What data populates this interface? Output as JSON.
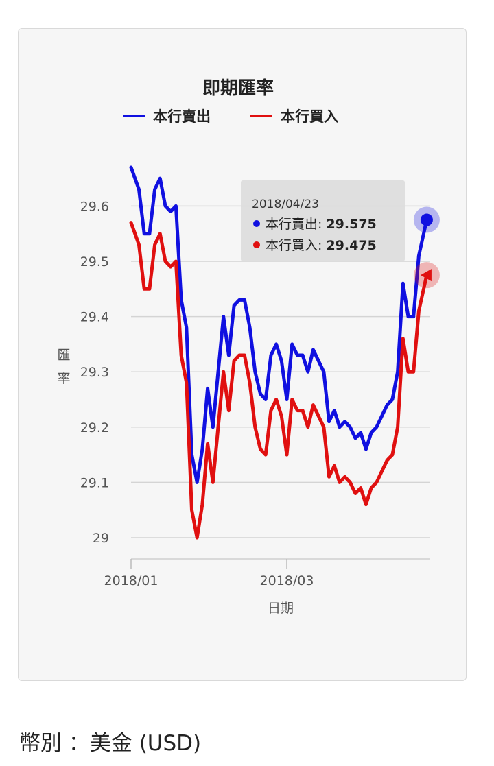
{
  "chart_data": {
    "type": "line",
    "title": "即期匯率",
    "xlabel": "日期",
    "ylabel": "匯率",
    "x_ticks": [
      "2018/01",
      "2018/03"
    ],
    "yticks": [
      29,
      29.1,
      29.2,
      29.3,
      29.4,
      29.5,
      29.6
    ],
    "ylim": [
      28.98,
      29.7
    ],
    "legend": "top",
    "grid": true,
    "x": [
      "2018-01-01",
      "2018-01-04",
      "2018-01-06",
      "2018-01-08",
      "2018-01-10",
      "2018-01-12",
      "2018-01-14",
      "2018-01-16",
      "2018-01-18",
      "2018-01-20",
      "2018-01-22",
      "2018-01-24",
      "2018-01-26",
      "2018-01-28",
      "2018-01-30",
      "2018-02-01",
      "2018-02-03",
      "2018-02-05",
      "2018-02-07",
      "2018-02-09",
      "2018-02-11",
      "2018-02-13",
      "2018-02-15",
      "2018-02-17",
      "2018-02-19",
      "2018-02-21",
      "2018-02-23",
      "2018-02-25",
      "2018-02-27",
      "2018-03-01",
      "2018-03-03",
      "2018-03-05",
      "2018-03-07",
      "2018-03-09",
      "2018-03-11",
      "2018-03-13",
      "2018-03-15",
      "2018-03-17",
      "2018-03-19",
      "2018-03-21",
      "2018-03-23",
      "2018-03-25",
      "2018-03-27",
      "2018-03-29",
      "2018-03-31",
      "2018-04-02",
      "2018-04-04",
      "2018-04-06",
      "2018-04-08",
      "2018-04-10",
      "2018-04-12",
      "2018-04-14",
      "2018-04-16",
      "2018-04-18",
      "2018-04-20",
      "2018-04-23"
    ],
    "series": [
      {
        "name": "本行賣出",
        "color": "#1010e0",
        "values": [
          29.67,
          29.63,
          29.55,
          29.55,
          29.63,
          29.65,
          29.6,
          29.59,
          29.6,
          29.43,
          29.38,
          29.15,
          29.1,
          29.16,
          29.27,
          29.2,
          29.3,
          29.4,
          29.33,
          29.42,
          29.43,
          29.43,
          29.38,
          29.3,
          29.26,
          29.25,
          29.33,
          29.35,
          29.32,
          29.25,
          29.35,
          29.33,
          29.33,
          29.3,
          29.34,
          29.32,
          29.3,
          29.21,
          29.23,
          29.2,
          29.21,
          29.2,
          29.18,
          29.19,
          29.16,
          29.19,
          29.2,
          29.22,
          29.24,
          29.25,
          29.3,
          29.46,
          29.4,
          29.4,
          29.51,
          29.575
        ]
      },
      {
        "name": "本行買入",
        "color": "#e01010",
        "values": [
          29.57,
          29.53,
          29.45,
          29.45,
          29.53,
          29.55,
          29.5,
          29.49,
          29.5,
          29.33,
          29.28,
          29.05,
          29.0,
          29.06,
          29.17,
          29.1,
          29.2,
          29.3,
          29.23,
          29.32,
          29.33,
          29.33,
          29.28,
          29.2,
          29.16,
          29.15,
          29.23,
          29.25,
          29.22,
          29.15,
          29.25,
          29.23,
          29.23,
          29.2,
          29.24,
          29.22,
          29.2,
          29.11,
          29.13,
          29.1,
          29.11,
          29.1,
          29.08,
          29.09,
          29.06,
          29.09,
          29.1,
          29.12,
          29.14,
          29.15,
          29.2,
          29.36,
          29.3,
          29.3,
          29.41,
          29.475
        ]
      }
    ],
    "tooltip": {
      "date": "2018/04/23",
      "items": [
        {
          "label": "本行賣出: ",
          "value": "29.575",
          "color": "#1010e0"
        },
        {
          "label": "本行買入: ",
          "value": "29.475",
          "color": "#e01010"
        }
      ]
    }
  },
  "currency_label": "幣別 ：美金 (USD)"
}
